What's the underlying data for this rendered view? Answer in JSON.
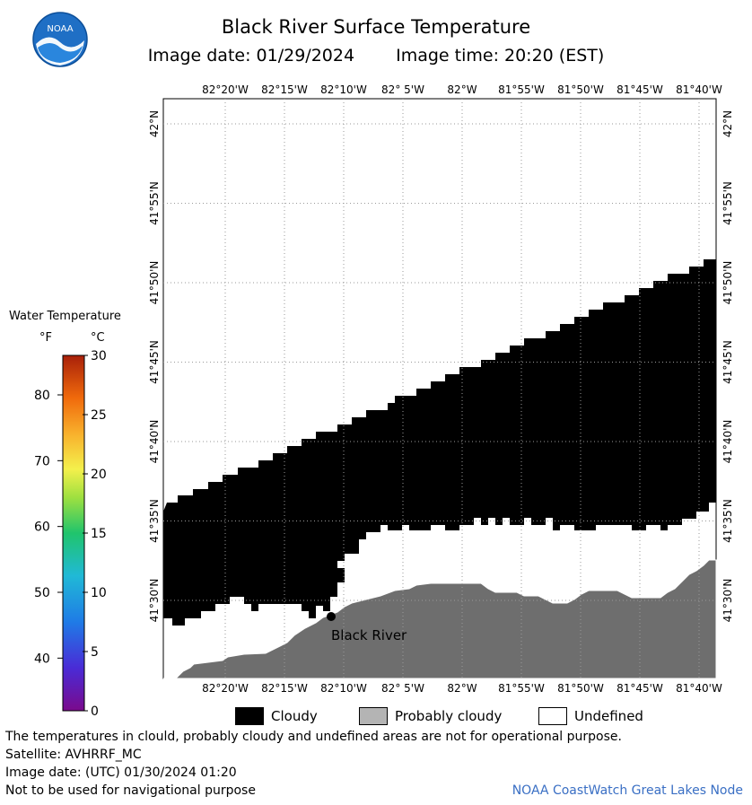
{
  "header": {
    "title": "Black River Surface Temperature",
    "image_date_label": "Image date: 01/29/2024",
    "image_time_label": "Image time: 20:20 (EST)",
    "logo_text": "NOAA"
  },
  "map": {
    "longitude_ticks": [
      "82°20'W",
      "82°15'W",
      "82°10'W",
      "82° 5'W",
      "82°W",
      "81°55'W",
      "81°50'W",
      "81°45'W",
      "81°40'W"
    ],
    "latitude_ticks": [
      "42°N",
      "41°55'N",
      "41°50'N",
      "41°45'N",
      "41°40'N",
      "41°35'N",
      "41°30'N"
    ],
    "location_label": "Black River",
    "colors": {
      "cloudy": "#000000",
      "land": "#6e6e6e",
      "undefined": "#ffffff",
      "grid": "#9a9a9a"
    }
  },
  "legend": {
    "title": "Water Temperature",
    "unit_f": "°F",
    "unit_c": "°C",
    "f_ticks": [
      "80",
      "70",
      "60",
      "50",
      "40"
    ],
    "c_ticks": [
      "30",
      "25",
      "20",
      "15",
      "10",
      "5",
      "0"
    ],
    "range_c": [
      0,
      30
    ],
    "range_f": [
      32,
      86
    ]
  },
  "key": {
    "cloudy": "Cloudy",
    "probably_cloudy": "Probably cloudy",
    "undefined": "Undefined"
  },
  "notes": {
    "disclaimer": "The temperatures in clould, probably cloudy and undefined areas are not for operational purpose.",
    "satellite": "Satellite: AVHRRF_MC",
    "utc_date": "Image date: (UTC) 01/30/2024  01:20",
    "navigation": "Not to be used for navigational purpose",
    "credit": "NOAA CoastWatch Great Lakes Node"
  }
}
